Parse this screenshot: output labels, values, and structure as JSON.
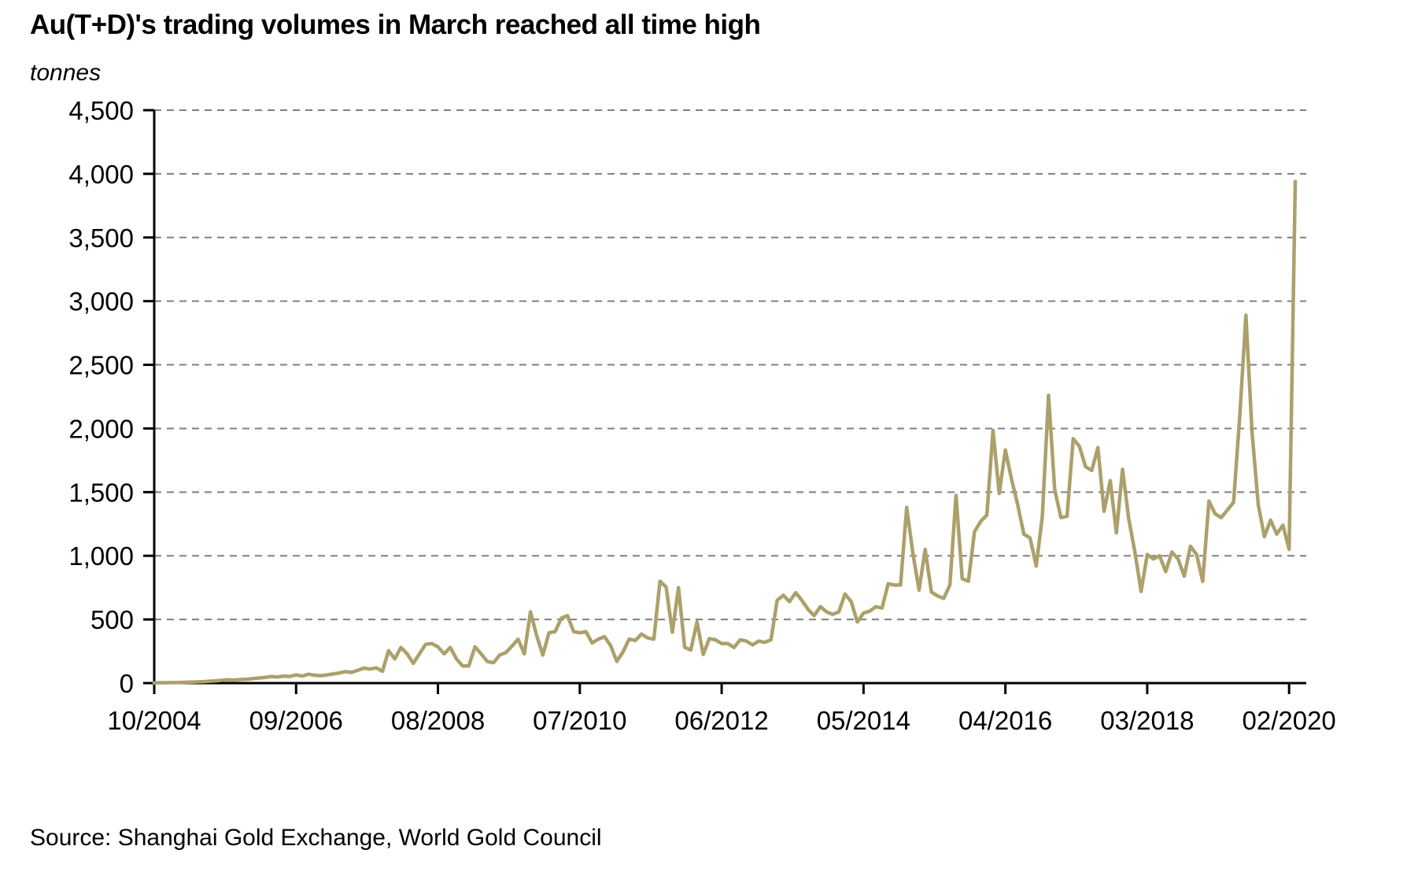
{
  "title": "Au(T+D)'s trading volumes in March reached all time high",
  "units_label": "tonnes",
  "source_note": "Source: Shanghai Gold Exchange, World Gold Council",
  "chart_data": {
    "type": "line",
    "series_name": "Au(T+D) monthly trading volume",
    "xlabel": "",
    "ylabel": "tonnes",
    "frequency": "monthly",
    "x_start": "10/2004",
    "x_end": "03/2020",
    "ylim": [
      0,
      4500
    ],
    "y_ticks": [
      0,
      500,
      1000,
      1500,
      2000,
      2500,
      3000,
      3500,
      4000,
      4500
    ],
    "x_ticks": [
      {
        "index": 0,
        "label": "10/2004"
      },
      {
        "index": 23,
        "label": "09/2006"
      },
      {
        "index": 46,
        "label": "08/2008"
      },
      {
        "index": 69,
        "label": "07/2010"
      },
      {
        "index": 92,
        "label": "06/2012"
      },
      {
        "index": 115,
        "label": "05/2014"
      },
      {
        "index": 138,
        "label": "04/2016"
      },
      {
        "index": 161,
        "label": "03/2018"
      },
      {
        "index": 184,
        "label": "02/2020"
      }
    ],
    "grid": "horizontal-dashed",
    "legend": "none",
    "line_color": "#ACA06B",
    "grid_color": "#808080",
    "axis_color": "#000000",
    "values": [
      2,
      3,
      3,
      4,
      5,
      6,
      8,
      10,
      12,
      15,
      18,
      22,
      26,
      24,
      28,
      30,
      35,
      40,
      45,
      52,
      48,
      55,
      52,
      65,
      55,
      70,
      62,
      58,
      64,
      72,
      80,
      90,
      84,
      100,
      118,
      110,
      120,
      92,
      255,
      190,
      280,
      230,
      155,
      230,
      305,
      310,
      285,
      230,
      280,
      190,
      135,
      135,
      285,
      230,
      170,
      160,
      220,
      240,
      290,
      345,
      230,
      560,
      375,
      220,
      395,
      405,
      510,
      530,
      405,
      395,
      405,
      315,
      345,
      365,
      295,
      170,
      245,
      345,
      335,
      385,
      355,
      345,
      800,
      755,
      400,
      750,
      280,
      260,
      480,
      225,
      350,
      340,
      310,
      310,
      280,
      340,
      330,
      300,
      330,
      320,
      340,
      650,
      690,
      640,
      710,
      650,
      580,
      530,
      600,
      560,
      540,
      560,
      700,
      640,
      480,
      550,
      565,
      600,
      590,
      780,
      770,
      770,
      1380,
      1020,
      730,
      1050,
      715,
      685,
      665,
      770,
      1475,
      820,
      800,
      1190,
      1270,
      1320,
      1985,
      1490,
      1830,
      1600,
      1400,
      1170,
      1140,
      920,
      1310,
      2260,
      1520,
      1300,
      1310,
      1920,
      1860,
      1700,
      1670,
      1850,
      1350,
      1590,
      1180,
      1680,
      1290,
      1030,
      720,
      1010,
      975,
      1000,
      875,
      1030,
      975,
      840,
      1075,
      1010,
      800,
      1430,
      1330,
      1300,
      1360,
      1420,
      2100,
      2890,
      1970,
      1400,
      1150,
      1280,
      1170,
      1240,
      1050,
      3940
    ]
  }
}
